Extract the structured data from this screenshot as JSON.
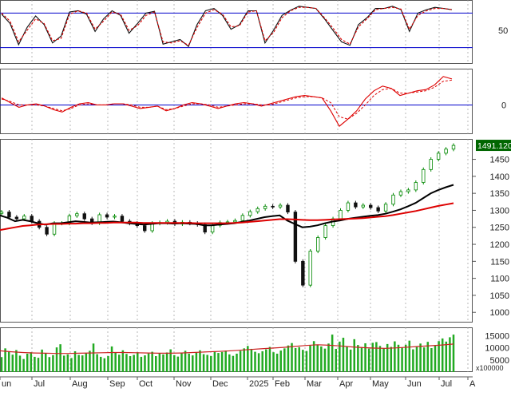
{
  "chart_data": [
    {
      "type": "line",
      "panel": "stochastic",
      "ylim": [
        0,
        100
      ],
      "y_tick_labels": [
        "50"
      ],
      "reference_lines": [
        80,
        20
      ],
      "series": [
        {
          "values": [
            78,
            62,
            25,
            55,
            75,
            60,
            28,
            40,
            82,
            84,
            78,
            48,
            70,
            84,
            76,
            45,
            62,
            80,
            83,
            26,
            30,
            34,
            22,
            60,
            84,
            88,
            76,
            52,
            60,
            84,
            84,
            28,
            50,
            76,
            85,
            92,
            90,
            88,
            70,
            50,
            30,
            24,
            60,
            72,
            88,
            88,
            92,
            86,
            48,
            80,
            86,
            90,
            88,
            86
          ]
        },
        {
          "values": [
            80,
            66,
            30,
            50,
            70,
            62,
            32,
            36,
            78,
            84,
            80,
            52,
            66,
            82,
            78,
            50,
            58,
            76,
            82,
            30,
            28,
            32,
            24,
            55,
            80,
            86,
            78,
            56,
            58,
            82,
            84,
            32,
            46,
            72,
            84,
            90,
            90,
            88,
            72,
            54,
            34,
            26,
            56,
            70,
            86,
            88,
            90,
            87,
            52,
            76,
            84,
            88,
            88,
            86
          ]
        }
      ]
    },
    {
      "type": "line",
      "panel": "macd",
      "y_tick_labels": [
        "0"
      ],
      "reference_lines": [
        0
      ],
      "series": [
        {
          "values": [
            6,
            2,
            -2,
            0,
            1,
            -1,
            -4,
            -6,
            -2,
            1,
            2,
            0,
            0,
            1,
            1,
            -1,
            -3,
            -2,
            -1,
            -5,
            -3,
            0,
            2,
            1,
            -1,
            -3,
            -1,
            1,
            2,
            1,
            -1,
            1,
            3,
            5,
            7,
            8,
            7,
            6,
            -5,
            -18,
            -12,
            -5,
            5,
            12,
            16,
            14,
            8,
            10,
            12,
            13,
            17,
            24,
            22
          ]
        },
        {
          "values": [
            5,
            3,
            0,
            0,
            0,
            -1,
            -3,
            -5,
            -3,
            0,
            1,
            0,
            0,
            1,
            1,
            0,
            -2,
            -2,
            -1,
            -4,
            -3,
            -1,
            1,
            1,
            0,
            -2,
            -1,
            0,
            1,
            1,
            0,
            0,
            2,
            4,
            6,
            7,
            7,
            6,
            2,
            -10,
            -12,
            -7,
            0,
            8,
            13,
            14,
            10,
            10,
            11,
            12,
            15,
            20,
            21
          ]
        }
      ]
    },
    {
      "type": "line",
      "panel": "price",
      "y_tick_labels": [
        "1450",
        "1400",
        "1350",
        "1300",
        "1250",
        "1200",
        "1150",
        "1100",
        "1050",
        "1000"
      ],
      "ylim": [
        970,
        1510
      ],
      "last_value_label": "1491.120",
      "x_tick_labels": [
        "un",
        "Jul",
        "Aug",
        "Sep",
        "Oct",
        "Nov",
        "Dec",
        "2025",
        "Feb",
        "Mar",
        "Apr",
        "May",
        "Jun",
        "Jul",
        "A"
      ],
      "series": [
        {
          "values": [
            1295,
            1280,
            1275,
            1283,
            1268,
            1250,
            1230,
            1262,
            1262,
            1284,
            1290,
            1275,
            1263,
            1287,
            1280,
            1283,
            1268,
            1262,
            1255,
            1240,
            1262,
            1264,
            1268,
            1260,
            1265,
            1262,
            1258,
            1236,
            1256,
            1264,
            1266,
            1270,
            1285,
            1296,
            1305,
            1312,
            1310,
            1315,
            1295,
            1150,
            1080,
            1180,
            1220,
            1255,
            1275,
            1300,
            1322,
            1310,
            1315,
            1308,
            1298,
            1318,
            1345,
            1355,
            1360,
            1382,
            1420,
            1450,
            1468,
            1480,
            1491
          ]
        },
        {
          "values": [
            1285,
            1278,
            1268,
            1272,
            1268,
            1262,
            1258,
            1262,
            1262,
            1265,
            1268,
            1266,
            1264,
            1265,
            1266,
            1267,
            1265,
            1262,
            1260,
            1258,
            1260,
            1262,
            1262,
            1261,
            1262,
            1261,
            1260,
            1256,
            1256,
            1258,
            1260,
            1262,
            1266,
            1270,
            1275,
            1280,
            1283,
            1285,
            1270,
            1260,
            1250,
            1252,
            1256,
            1262,
            1267,
            1270,
            1275,
            1278,
            1281,
            1284,
            1286,
            1290,
            1296,
            1303,
            1312,
            1322,
            1336,
            1350,
            1360,
            1368,
            1375
          ]
        },
        {
          "values": [
            1242,
            1246,
            1250,
            1254,
            1256,
            1258,
            1259,
            1260,
            1260,
            1261,
            1261,
            1262,
            1262,
            1263,
            1263,
            1264,
            1264,
            1264,
            1264,
            1263,
            1263,
            1263,
            1263,
            1263,
            1263,
            1263,
            1262,
            1262,
            1262,
            1262,
            1262,
            1263,
            1264,
            1266,
            1268,
            1270,
            1272,
            1274,
            1274,
            1273,
            1272,
            1271,
            1271,
            1272,
            1273,
            1274,
            1275,
            1276,
            1277,
            1279,
            1281,
            1283,
            1286,
            1290,
            1294,
            1298,
            1303,
            1308,
            1313,
            1317,
            1321
          ]
        }
      ]
    },
    {
      "type": "bar",
      "panel": "volume",
      "y_tick_labels": [
        "15000",
        "10000",
        "5000"
      ],
      "unit_label": "x100000",
      "values": [
        6200,
        9800,
        8600,
        7200,
        9100,
        6800,
        5400,
        7600,
        8200,
        6300,
        5900,
        9300,
        7800,
        6200,
        7000,
        10200,
        11500,
        6800,
        7300,
        5800,
        8600,
        7100,
        6900,
        7900,
        8800,
        11800,
        7400,
        6300,
        5700,
        6600,
        10600,
        8000,
        7200,
        9000,
        7500,
        6600,
        7100,
        8200,
        6300,
        6900,
        7700,
        8400,
        6600,
        7900,
        7300,
        8100,
        9400,
        7000,
        6400,
        7800,
        8800,
        7600,
        6900,
        8200,
        9000,
        7400,
        7100,
        6600,
        8600,
        7900,
        8300,
        8900,
        7300,
        6700,
        7600,
        8800,
        9800,
        10800,
        9600,
        8400,
        7800,
        8600,
        9400,
        10400,
        8200,
        7600,
        8900,
        9800,
        11000,
        12000,
        9900,
        10300,
        9200,
        8700,
        10900,
        12800,
        11400,
        10600,
        9700,
        11800,
        15500,
        9600,
        12600,
        14200,
        10600,
        9300,
        13600,
        11200,
        10300,
        11900,
        9700,
        12100,
        12400,
        10800,
        9800,
        11600,
        10400,
        12700,
        11300,
        10100,
        11300,
        13000,
        9400,
        10700,
        11800,
        10200,
        12500,
        9900,
        11000,
        12800,
        13900,
        12600,
        14400,
        15500
      ]
    },
    {
      "type": "line",
      "panel": "volume",
      "series": [
        {
          "values": [
            8800,
            8400,
            8100,
            7900,
            7800,
            7700,
            7700,
            7800,
            7900,
            8000,
            8100,
            8100,
            8000,
            7900,
            7800,
            7800,
            7900,
            8100,
            8300,
            8500,
            8700,
            9000,
            9300,
            9600,
            9900,
            10200,
            10600,
            11000,
            11300,
            11100,
            10800,
            10400,
            10100,
            9900,
            9800,
            10000,
            10300,
            10600,
            10900,
            11200,
            11600
          ]
        }
      ]
    }
  ],
  "colors": {
    "stoch_fast": "#111111",
    "stoch_slow": "#dd0000",
    "reference": "#0000cc",
    "up_candle": "#008800",
    "down_candle": "#111111",
    "ma_black": "#000000",
    "ma_red": "#dd0000",
    "volume_bar": "#22aa22",
    "last_value_bg": "#006600",
    "last_value_fg": "#ffffff",
    "grid": "#999999"
  }
}
